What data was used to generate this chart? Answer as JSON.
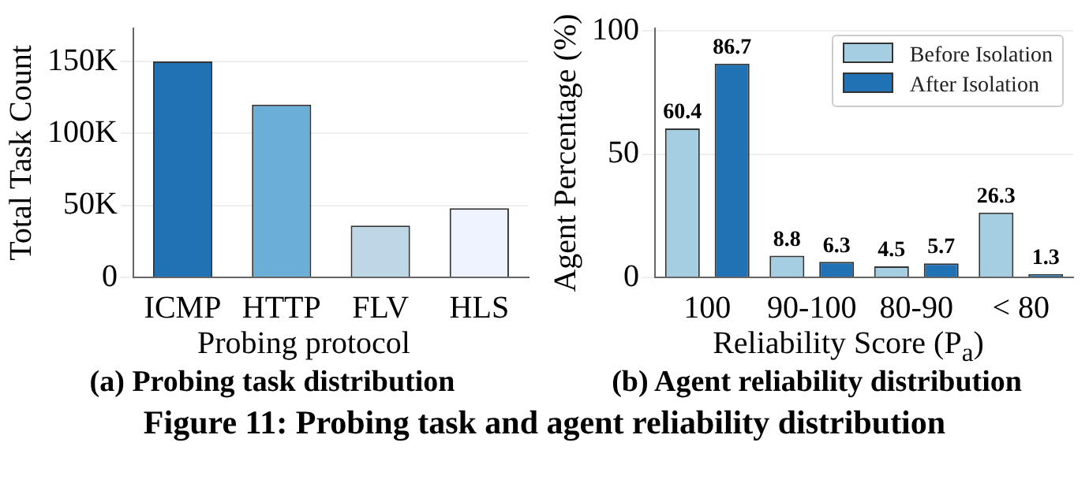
{
  "chart_data": [
    {
      "type": "bar",
      "xlabel": "Probing protocol",
      "ylabel": "Total Task Count",
      "categories": [
        "ICMP",
        "HTTP",
        "FLV",
        "HLS"
      ],
      "values": [
        150000,
        120000,
        36000,
        48000
      ],
      "colors": [
        "#2171b5",
        "#6baed6",
        "#bdd7e7",
        "#eff3ff"
      ],
      "ylim": [
        0,
        173000
      ],
      "yticks": [
        0,
        {
          "value": 50000,
          "label": "50K"
        },
        {
          "value": 100000,
          "label": "100K"
        },
        {
          "value": 150000,
          "label": "150K"
        }
      ],
      "grid": "y",
      "annotations": [
        "(a) Probing task distribution"
      ]
    },
    {
      "type": "bar",
      "xlabel": "Reliability Score (P$_{a}$)",
      "ylabel": "Agent Percentage (%)",
      "categories": [
        "100",
        "90-100",
        "80-90",
        "< 80"
      ],
      "series": [
        {
          "name": "Before Isolation",
          "color": "#a6cee3",
          "values": [
            60.4,
            8.8,
            4.5,
            26.3
          ]
        },
        {
          "name": "After Isolation",
          "color": "#2171b5",
          "values": [
            86.7,
            6.3,
            5.7,
            1.3
          ]
        }
      ],
      "ylim": [
        0,
        101
      ],
      "yticks": [
        0,
        50,
        100
      ],
      "grid": "y",
      "legend": "top right",
      "data_labels": true,
      "annotations": [
        "(b) Agent reliability distribution",
        "Figure 11: Probing task and agent reliability distribution"
      ]
    }
  ]
}
